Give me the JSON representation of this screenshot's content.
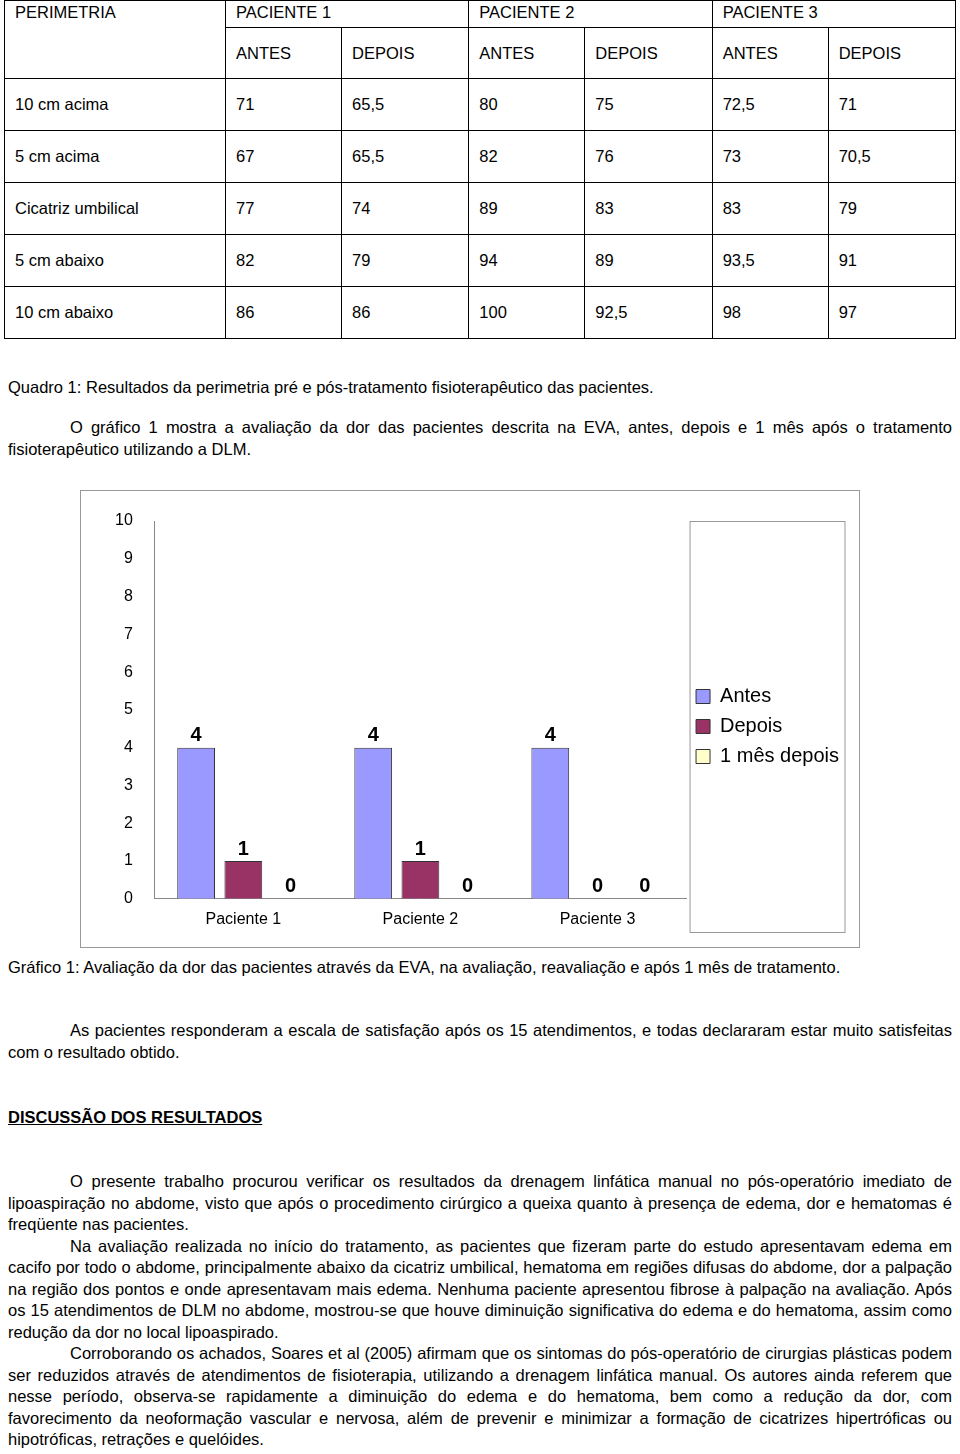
{
  "table": {
    "header": [
      "PERIMETRIA",
      "PACIENTE 1",
      "PACIENTE 2",
      "PACIENTE 3"
    ],
    "subheader": [
      "ANTES",
      "DEPOIS",
      "ANTES",
      "DEPOIS",
      "ANTES",
      "DEPOIS"
    ],
    "rows": [
      [
        "10 cm acima",
        "71",
        "65,5",
        "80",
        "75",
        "72,5",
        "71"
      ],
      [
        "5 cm acima",
        "67",
        "65,5",
        "82",
        "76",
        "73",
        "70,5"
      ],
      [
        "Cicatriz umbilical",
        "77",
        "74",
        "89",
        "83",
        "83",
        "79"
      ],
      [
        "5 cm abaixo",
        "82",
        "79",
        "94",
        "89",
        "93,5",
        "91"
      ],
      [
        "10 cm abaixo",
        "86",
        "86",
        "100",
        "92,5",
        "98",
        "97"
      ]
    ]
  },
  "table_caption": "Quadro 1: Resultados da perimetria pré e pós-tratamento fisioterapêutico das pacientes.",
  "intro_paragraph": "O gráfico 1 mostra a avaliação da dor das pacientes descrita na EVA, antes, depois e 1 mês após o tratamento fisioterapêutico utilizando a DLM.",
  "chart_data": {
    "type": "bar",
    "categories": [
      "Paciente 1",
      "Paciente 2",
      "Paciente 3"
    ],
    "series": [
      {
        "name": "Antes",
        "color": "#9999ff",
        "values": [
          4,
          4,
          4
        ]
      },
      {
        "name": "Depois",
        "color": "#993366",
        "values": [
          1,
          1,
          0
        ]
      },
      {
        "name": "1 mês depois",
        "color": "#ffffcc",
        "values": [
          0,
          0,
          0
        ]
      }
    ],
    "ylim": [
      0,
      10
    ],
    "yticks": [
      0,
      1,
      2,
      3,
      4,
      5,
      6,
      7,
      8,
      9,
      10
    ],
    "grid": false,
    "legend": "right",
    "data_labels": true
  },
  "chart_caption": "Gráfico 1: Avaliação da dor das pacientes através da EVA, na avaliação, reavaliação e após 1 mês de tratamento.",
  "satisfaction_paragraph": "As pacientes responderam a escala de satisfação após os 15 atendimentos, e todas declararam estar muito satisfeitas com o resultado obtido.",
  "heading": "DISCUSSÃO DOS RESULTADOS",
  "discussion": [
    "O presente trabalho procurou verificar os resultados da drenagem linfática manual no pós-operatório imediato de lipoaspiração no abdome, visto que após o procedimento cirúrgico a queixa quanto à presença de edema, dor e hematomas é freqüente nas pacientes.",
    "Na avaliação realizada no início do tratamento, as pacientes que fizeram parte do estudo apresentavam edema em cacifo por todo o abdome, principalmente abaixo da cicatriz umbilical, hematoma em regiões difusas do abdome, dor a palpação na região dos pontos e onde apresentavam mais edema. Nenhuma paciente apresentou fibrose à palpação na avaliação. Após os 15 atendimentos de DLM no abdome, mostrou-se que houve diminuição significativa do edema e do hematoma, assim como redução da dor no local lipoaspirado.",
    "Corroborando os achados, Soares et al (2005) afirmam que os sintomas do pós-operatório de cirurgias plásticas podem ser reduzidos através de atendimentos de fisioterapia, utilizando a drenagem linfática manual. Os autores ainda referem que nesse período, observa-se rapidamente a diminuição do edema e do hematoma, bem como a redução da dor, com favorecimento da neoformação vascular e nervosa, além de prevenir e minimizar a formação de cicatrizes hipertróficas ou hipotróficas, retrações e quelóides."
  ]
}
